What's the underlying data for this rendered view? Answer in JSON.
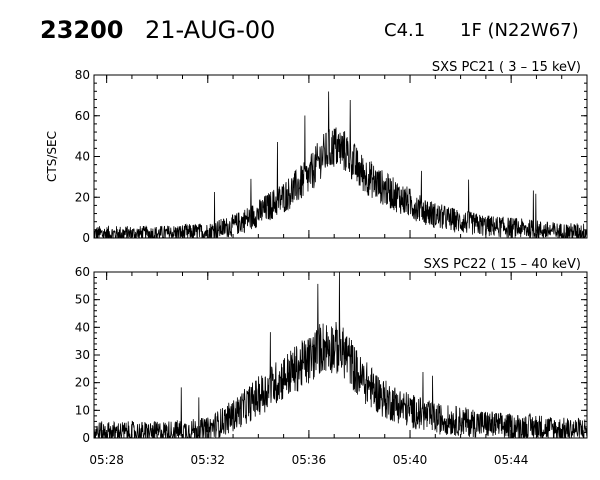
{
  "header": {
    "event_id": "23200",
    "date": "21-AUG-00",
    "goes_class": "C4.1",
    "importance_location": "1F (N22W67)"
  },
  "chart_data": [
    {
      "type": "line",
      "title": "SXS PC21  (  3 – 15 keV)",
      "ylabel": "CTS/SEC",
      "ylim": [
        0,
        80
      ],
      "yticks": [
        "0",
        "20",
        "40",
        "60",
        "80"
      ],
      "x_range": [
        "05:27:30",
        "05:47:00"
      ],
      "xticks": [
        "05:28",
        "05:32",
        "05:36",
        "05:40",
        "05:44"
      ],
      "series": [
        {
          "x": [
            "05:28",
            "05:30",
            "05:32",
            "05:33",
            "05:34",
            "05:35",
            "05:36",
            "05:36:30",
            "05:37",
            "05:37:30",
            "05:38",
            "05:39",
            "05:40",
            "05:41",
            "05:42",
            "05:43",
            "05:44",
            "05:45",
            "05:46",
            "05:47"
          ],
          "values": [
            2,
            2,
            3,
            6,
            12,
            20,
            30,
            40,
            45,
            42,
            33,
            24,
            17,
            11,
            8,
            6,
            5,
            4,
            3,
            3
          ]
        }
      ]
    },
    {
      "type": "line",
      "title": "SXS PC22  ( 15 – 40 keV)",
      "ylabel": "",
      "ylim": [
        0,
        60
      ],
      "yticks": [
        "0",
        "10",
        "20",
        "30",
        "40",
        "50",
        "60"
      ],
      "x_range": [
        "05:27:30",
        "05:47:00"
      ],
      "xticks": [
        "05:28",
        "05:32",
        "05:36",
        "05:40",
        "05:44"
      ],
      "series": [
        {
          "x": [
            "05:28",
            "05:30",
            "05:32",
            "05:33",
            "05:34",
            "05:35",
            "05:36",
            "05:36:30",
            "05:37",
            "05:37:30",
            "05:38",
            "05:39",
            "05:40",
            "05:41",
            "05:42",
            "05:43",
            "05:44",
            "05:45",
            "05:46",
            "05:47"
          ],
          "values": [
            2,
            2,
            3,
            8,
            15,
            22,
            28,
            33,
            33,
            30,
            22,
            14,
            10,
            7,
            6,
            5,
            4,
            4,
            3,
            3
          ]
        }
      ]
    }
  ]
}
